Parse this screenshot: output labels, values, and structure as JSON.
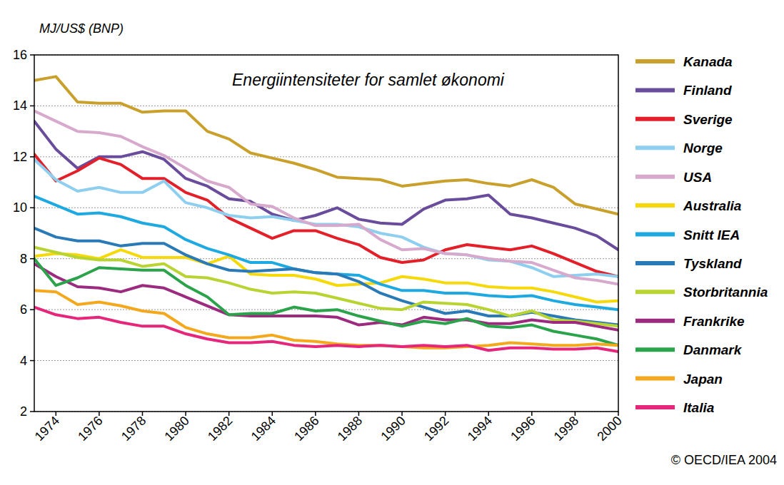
{
  "chart_data": {
    "type": "line",
    "title": "Energiintensiteter for samlet økonomi",
    "y_label": "MJ/US$ (BNP)",
    "annotations": [
      "© OECD/IEA 2004"
    ],
    "x": [
      1973,
      1974,
      1975,
      1976,
      1977,
      1978,
      1979,
      1980,
      1981,
      1982,
      1983,
      1984,
      1985,
      1986,
      1987,
      1988,
      1989,
      1990,
      1991,
      1992,
      1993,
      1994,
      1995,
      1996,
      1997,
      1998,
      1999,
      2000
    ],
    "xlim": [
      1973,
      2000
    ],
    "xticks": [
      1974,
      1976,
      1978,
      1980,
      1982,
      1984,
      1986,
      1988,
      1990,
      1992,
      1994,
      1996,
      1998,
      2000
    ],
    "ylim": [
      2,
      16
    ],
    "yticks": [
      2,
      4,
      6,
      8,
      10,
      12,
      14,
      16
    ],
    "grid": true,
    "legend": "right",
    "series": [
      {
        "name": "Kanada",
        "color": "#c9a02b",
        "values": [
          15.0,
          15.15,
          14.15,
          14.1,
          14.1,
          13.75,
          13.8,
          13.8,
          13.0,
          12.7,
          12.15,
          11.95,
          11.75,
          11.5,
          11.2,
          11.15,
          11.1,
          10.85,
          10.95,
          11.05,
          11.1,
          10.95,
          10.85,
          11.1,
          10.8,
          10.15,
          9.95,
          9.75
        ]
      },
      {
        "name": "Finland",
        "color": "#6a4c9c",
        "values": [
          13.4,
          12.3,
          11.55,
          12.0,
          12.0,
          12.2,
          11.9,
          11.15,
          10.85,
          10.35,
          10.25,
          9.75,
          9.5,
          9.7,
          10.0,
          9.55,
          9.4,
          9.35,
          9.95,
          10.3,
          10.35,
          10.5,
          9.75,
          9.6,
          9.4,
          9.2,
          8.9,
          8.35
        ]
      },
      {
        "name": "Sverige",
        "color": "#e3202a",
        "values": [
          12.1,
          11.05,
          11.45,
          11.95,
          11.7,
          11.15,
          11.15,
          10.6,
          10.3,
          9.6,
          9.2,
          8.8,
          9.1,
          9.1,
          8.8,
          8.55,
          8.05,
          7.85,
          7.95,
          8.35,
          8.55,
          8.45,
          8.35,
          8.5,
          8.2,
          7.85,
          7.5,
          7.3
        ]
      },
      {
        "name": "Norge",
        "color": "#8ecfef",
        "values": [
          11.9,
          11.1,
          10.65,
          10.8,
          10.6,
          10.6,
          11.05,
          10.2,
          10.0,
          9.7,
          9.6,
          9.65,
          9.5,
          9.35,
          9.35,
          9.25,
          9.0,
          8.85,
          8.45,
          8.2,
          8.15,
          7.95,
          7.9,
          7.65,
          7.3,
          7.35,
          7.4,
          7.3
        ]
      },
      {
        "name": "USA",
        "color": "#d7a9cc",
        "values": [
          13.8,
          13.4,
          13.0,
          12.95,
          12.8,
          12.4,
          12.05,
          11.55,
          11.05,
          10.8,
          10.15,
          10.05,
          9.6,
          9.3,
          9.3,
          9.35,
          8.75,
          8.35,
          8.4,
          8.2,
          8.15,
          8.0,
          7.9,
          7.85,
          7.55,
          7.25,
          7.15,
          7.0
        ]
      },
      {
        "name": "Australia",
        "color": "#f5d90a",
        "values": [
          8.1,
          8.2,
          8.15,
          8.0,
          8.35,
          8.05,
          8.05,
          8.05,
          7.8,
          8.1,
          7.4,
          7.35,
          7.35,
          7.2,
          6.95,
          7.0,
          7.05,
          7.3,
          7.2,
          7.05,
          7.05,
          6.9,
          6.85,
          6.85,
          6.7,
          6.5,
          6.3,
          6.35
        ]
      },
      {
        "name": "Snitt IEA",
        "color": "#1fa9e1",
        "values": [
          10.45,
          10.1,
          9.75,
          9.8,
          9.65,
          9.4,
          9.25,
          8.75,
          8.4,
          8.15,
          7.85,
          7.85,
          7.6,
          7.45,
          7.4,
          7.35,
          7.0,
          6.75,
          6.75,
          6.65,
          6.65,
          6.55,
          6.5,
          6.55,
          6.35,
          6.2,
          6.1,
          6.0
        ]
      },
      {
        "name": "Tyskland",
        "color": "#2a7ab8",
        "values": [
          9.2,
          8.85,
          8.7,
          8.7,
          8.5,
          8.6,
          8.6,
          8.15,
          7.8,
          7.55,
          7.5,
          7.55,
          7.6,
          7.45,
          7.4,
          7.1,
          6.65,
          6.35,
          6.1,
          5.85,
          5.95,
          5.75,
          5.75,
          5.9,
          5.75,
          5.6,
          5.5,
          5.4
        ]
      },
      {
        "name": "Storbritannia",
        "color": "#b8d432",
        "values": [
          8.45,
          8.25,
          8.05,
          7.95,
          7.95,
          7.7,
          7.8,
          7.3,
          7.25,
          7.05,
          6.8,
          6.65,
          6.7,
          6.65,
          6.45,
          6.25,
          6.05,
          6.0,
          6.3,
          6.25,
          6.2,
          6.0,
          5.75,
          5.95,
          5.6,
          5.55,
          5.45,
          5.35
        ]
      },
      {
        "name": "Frankrike",
        "color": "#9c2a7e",
        "values": [
          7.8,
          7.3,
          6.9,
          6.85,
          6.7,
          6.95,
          6.85,
          6.5,
          6.15,
          5.8,
          5.75,
          5.75,
          5.75,
          5.75,
          5.7,
          5.4,
          5.5,
          5.4,
          5.7,
          5.6,
          5.6,
          5.45,
          5.45,
          5.6,
          5.5,
          5.5,
          5.35,
          5.2
        ]
      },
      {
        "name": "Danmark",
        "color": "#2aa34a",
        "values": [
          8.0,
          6.95,
          7.25,
          7.65,
          7.6,
          7.55,
          7.55,
          6.95,
          6.5,
          5.8,
          5.85,
          5.85,
          6.1,
          5.95,
          6.0,
          5.75,
          5.55,
          5.35,
          5.55,
          5.45,
          5.65,
          5.35,
          5.3,
          5.4,
          5.15,
          5.0,
          4.85,
          4.6
        ]
      },
      {
        "name": "Japan",
        "color": "#f4a81d",
        "values": [
          6.75,
          6.7,
          6.2,
          6.3,
          6.15,
          5.95,
          5.85,
          5.3,
          5.05,
          4.9,
          4.9,
          5.0,
          4.8,
          4.75,
          4.65,
          4.6,
          4.6,
          4.55,
          4.5,
          4.5,
          4.55,
          4.6,
          4.7,
          4.65,
          4.6,
          4.6,
          4.65,
          4.6
        ]
      },
      {
        "name": "Italia",
        "color": "#e5267a",
        "values": [
          6.1,
          5.8,
          5.65,
          5.7,
          5.5,
          5.35,
          5.35,
          5.05,
          4.85,
          4.7,
          4.7,
          4.75,
          4.6,
          4.55,
          4.6,
          4.55,
          4.6,
          4.55,
          4.6,
          4.55,
          4.6,
          4.4,
          4.5,
          4.5,
          4.45,
          4.45,
          4.5,
          4.35
        ]
      }
    ]
  }
}
